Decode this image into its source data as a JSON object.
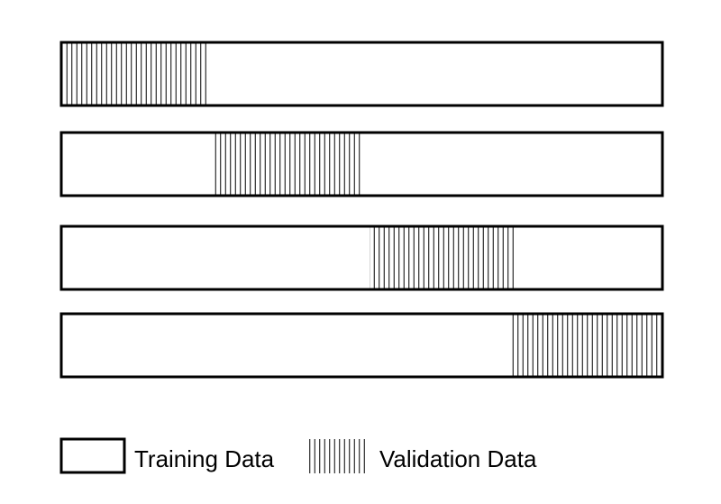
{
  "colors": {
    "stroke": "#000000",
    "background": "#ffffff"
  },
  "folds": [
    {
      "fold": 1,
      "validation_start_fraction": 0.0,
      "validation_end_fraction": 0.245
    },
    {
      "fold": 2,
      "validation_start_fraction": 0.253,
      "validation_end_fraction": 0.497
    },
    {
      "fold": 3,
      "validation_start_fraction": 0.513,
      "validation_end_fraction": 0.757
    },
    {
      "fold": 4,
      "validation_start_fraction": 0.747,
      "validation_end_fraction": 1.0
    }
  ],
  "legend": {
    "training_label": "Training Data",
    "validation_label": "Validation Data"
  }
}
